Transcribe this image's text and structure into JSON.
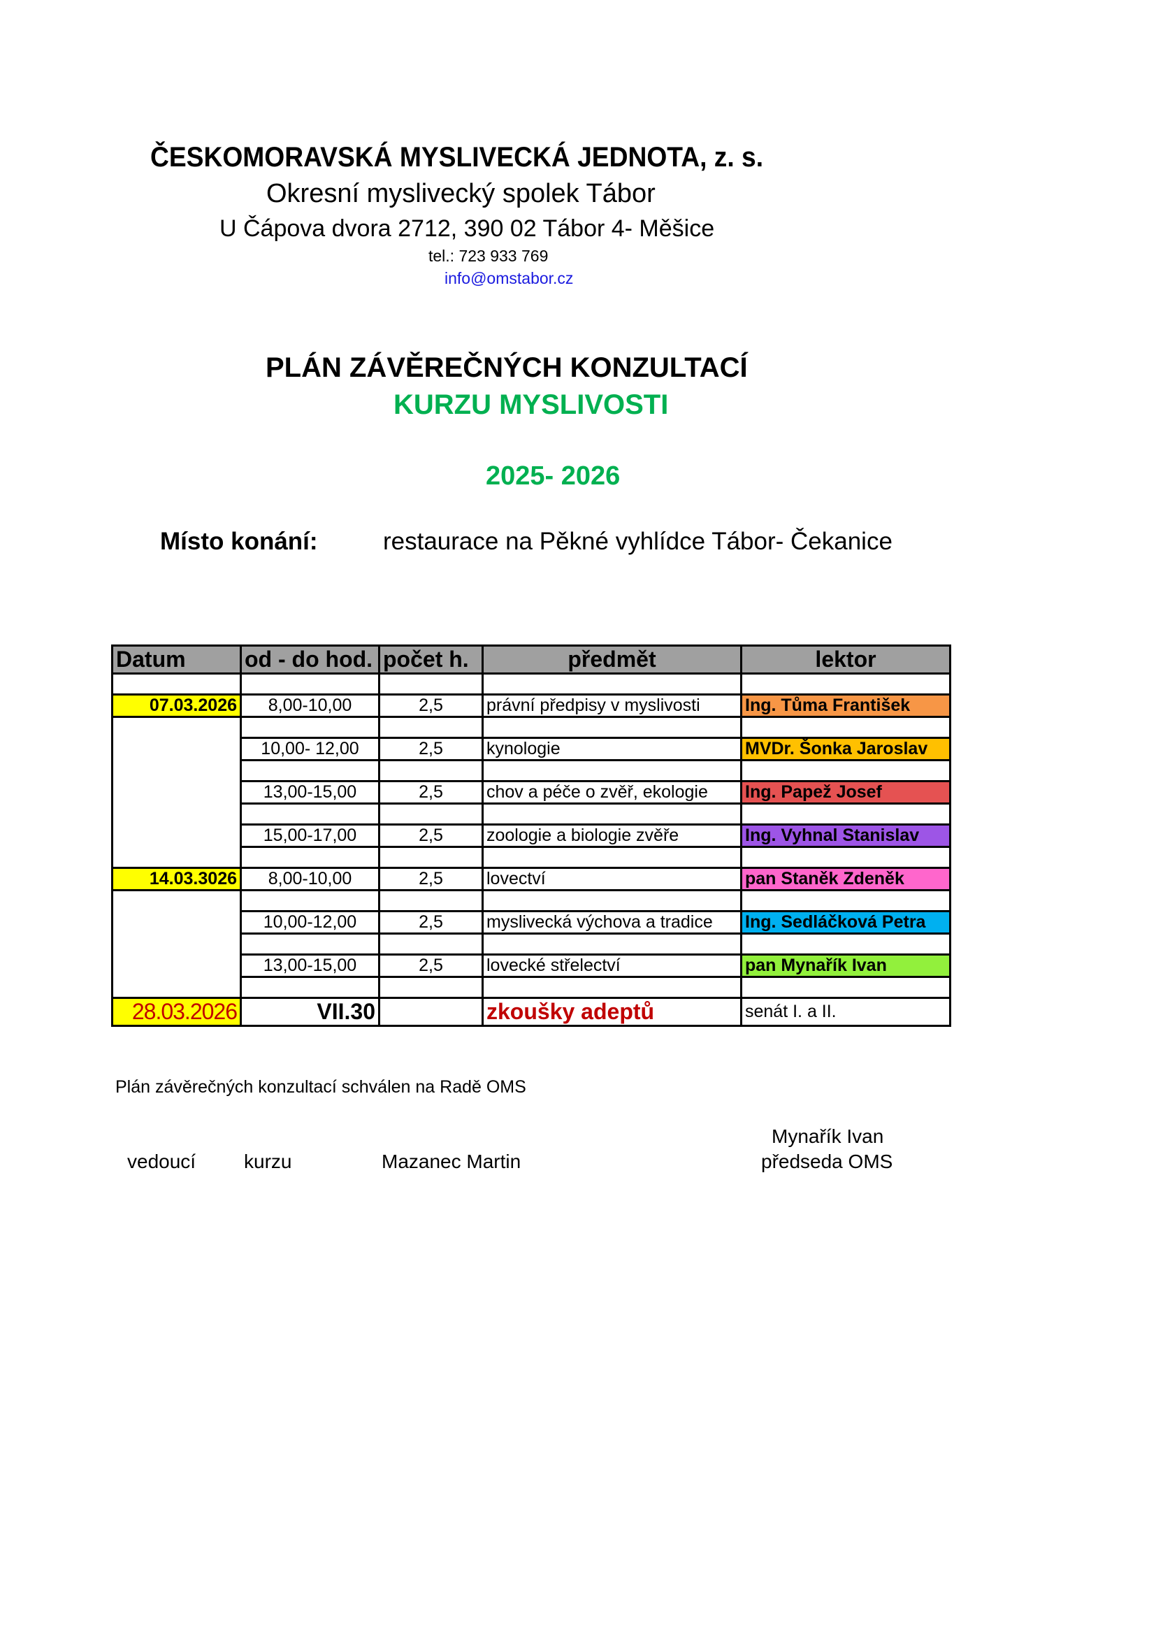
{
  "header": {
    "organization": "ČESKOMORAVSKÁ  MYSLIVECKÁ  JEDNOTA, z. s.",
    "branch": "Okresní  myslivecký  spolek  Tábor",
    "address": "U Čápova dvora 2712, 390 02 Tábor 4- Měšice",
    "phone": "tel.: 723 933 769",
    "email": "info@omstabor.cz"
  },
  "title": {
    "line1": "PLÁN  ZÁVĚREČNÝCH KONZULTACÍ",
    "line2": "KURZU  MYSLIVOSTI",
    "years": "2025- 2026"
  },
  "venue": {
    "label": "Místo konání:",
    "value": "restaurace na Pěkné vyhlídce Tábor- Čekanice"
  },
  "colors": {
    "header_gray": "#a0a0a0",
    "date_yellow": "#ffff00",
    "green_text": "#00b050",
    "red_text": "#c00000",
    "link_blue": "#1a1adf"
  },
  "table": {
    "columns": [
      "Datum",
      "od - do hod.",
      "počet h.",
      "předmět",
      "lektor"
    ],
    "rows": [
      {
        "date": "07.03.2026",
        "time": "8,00-10,00",
        "hours": "2,5",
        "subject": "právní předpisy v myslivosti",
        "lecturer": "Ing. Tůma František",
        "color": "#f79646"
      },
      {
        "date": "",
        "time": "10,00- 12,00",
        "hours": "2,5",
        "subject": "kynologie",
        "lecturer": "MVDr. Šonka Jaroslav",
        "color": "#ffc000"
      },
      {
        "date": "",
        "time": "13,00-15,00",
        "hours": "2,5",
        "subject": "chov a péče o zvěř, ekologie",
        "lecturer": "Ing. Papež Josef",
        "color": "#e55252"
      },
      {
        "date": "",
        "time": "15,00-17,00",
        "hours": "2,5",
        "subject": "zoologie a biologie zvěře",
        "lecturer": "Ing. Vyhnal Stanislav",
        "color": "#9d55e6"
      },
      {
        "date": "14.03.3026",
        "time": "8,00-10,00",
        "hours": "2,5",
        "subject": "lovectví",
        "lecturer": "pan Staněk Zdeněk",
        "color": "#ff66cc"
      },
      {
        "date": "",
        "time": "10,00-12,00",
        "hours": "2,5",
        "subject": "myslivecká výchova a tradice",
        "lecturer": "Ing. Sedláčková Petra",
        "color": "#00b0f0"
      },
      {
        "date": "",
        "time": "13,00-15,00",
        "hours": "2,5",
        "subject": "lovecké střelectví",
        "lecturer": "pan Mynařík Ivan",
        "color": "#92f03c"
      }
    ],
    "exam": {
      "date": "28.03.2026",
      "time": "VII.30",
      "hours": "",
      "subject": "zkoušky adeptů",
      "lecturer": "senát I. a II."
    }
  },
  "footer": {
    "note": "Plán závěrečných konzultací schválen na Radě OMS",
    "leader_label_1": "vedoucí",
    "leader_label_2": "kurzu",
    "leader_name": "Mazanec Martin",
    "chair_name": "Mynařík Ivan",
    "chair_title": "předseda OMS"
  }
}
